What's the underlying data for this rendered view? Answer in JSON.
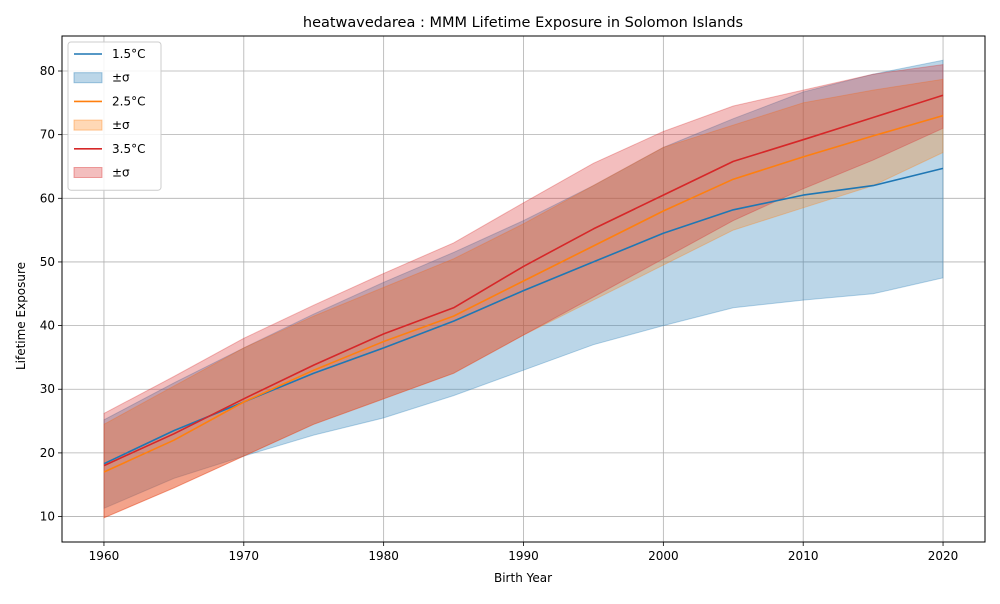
{
  "chart_data": {
    "type": "line",
    "title": "heatwavedarea : MMM Lifetime Exposure in Solomon Islands",
    "xlabel": "Birth Year",
    "ylabel": "Lifetime Exposure",
    "xlim": [
      1957,
      2023
    ],
    "ylim": [
      6,
      85.5
    ],
    "xticks": [
      1960,
      1970,
      1980,
      1990,
      2000,
      2010,
      2020
    ],
    "yticks": [
      10,
      20,
      30,
      40,
      50,
      60,
      70,
      80
    ],
    "grid": true,
    "legend_position": "top-left",
    "x": [
      1960,
      1965,
      1970,
      1975,
      1980,
      1985,
      1990,
      1995,
      2000,
      2005,
      2010,
      2015,
      2020
    ],
    "series": [
      {
        "name": "1.5°C",
        "band_name": "±σ",
        "color": "#1f77b4",
        "values": [
          18.3,
          23.5,
          28.0,
          32.5,
          36.5,
          40.7,
          45.5,
          50.0,
          54.5,
          58.2,
          60.5,
          62.0,
          64.7
        ],
        "upper": [
          25.2,
          31.0,
          36.5,
          41.8,
          46.8,
          51.5,
          56.5,
          62.0,
          68.0,
          72.5,
          76.7,
          79.5,
          81.7
        ],
        "lower": [
          11.3,
          16.0,
          19.5,
          22.8,
          25.5,
          29.0,
          33.0,
          37.0,
          40.0,
          42.8,
          44.0,
          45.0,
          47.5
        ]
      },
      {
        "name": "2.5°C",
        "band_name": "±σ",
        "color": "#ff7f0e",
        "values": [
          17.0,
          22.0,
          28.0,
          33.0,
          37.5,
          41.5,
          47.0,
          52.5,
          58.0,
          63.0,
          66.5,
          69.8,
          73.0
        ],
        "upper": [
          24.5,
          30.5,
          36.5,
          41.5,
          46.0,
          50.5,
          56.0,
          62.0,
          68.0,
          71.5,
          75.0,
          77.0,
          78.7
        ],
        "lower": [
          9.8,
          14.5,
          19.5,
          24.5,
          28.5,
          32.5,
          38.5,
          44.0,
          49.5,
          55.0,
          58.5,
          62.0,
          67.2
        ]
      },
      {
        "name": "3.5°C",
        "band_name": "±σ",
        "color": "#d62728",
        "values": [
          18.0,
          23.0,
          28.5,
          33.8,
          38.7,
          42.8,
          49.3,
          55.2,
          60.5,
          65.8,
          69.2,
          72.7,
          76.2
        ],
        "upper": [
          26.2,
          32.0,
          38.0,
          43.2,
          48.2,
          53.0,
          59.3,
          65.5,
          70.5,
          74.5,
          77.0,
          79.5,
          81.0
        ],
        "lower": [
          9.8,
          14.5,
          19.5,
          24.5,
          28.5,
          32.5,
          38.5,
          44.5,
          50.5,
          56.5,
          61.5,
          66.0,
          71.0
        ]
      }
    ]
  }
}
